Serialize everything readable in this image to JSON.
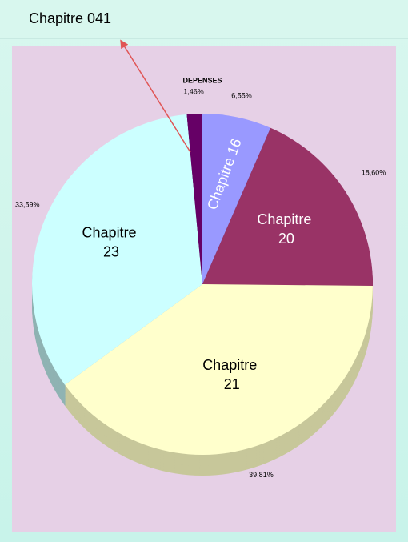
{
  "chart_data": {
    "type": "pie",
    "title": "DEPENSES",
    "categories": [
      "Chapitre 16",
      "Chapitre 20",
      "Chapitre 21",
      "Chapitre 23",
      "Chapitre 041"
    ],
    "values": [
      6.55,
      18.6,
      39.81,
      33.59,
      1.46
    ],
    "value_labels": [
      "6,55%",
      "18,60%",
      "39,81%",
      "33,59%",
      "1,46%"
    ],
    "colors": [
      "#9999ff",
      "#993366",
      "#ffffcc",
      "#ccffff",
      "#660066"
    ],
    "side_colors": [
      "#6b6bb3",
      "#6b2447",
      "#c7c79a",
      "#8fb3b3",
      "#470047"
    ]
  }
}
